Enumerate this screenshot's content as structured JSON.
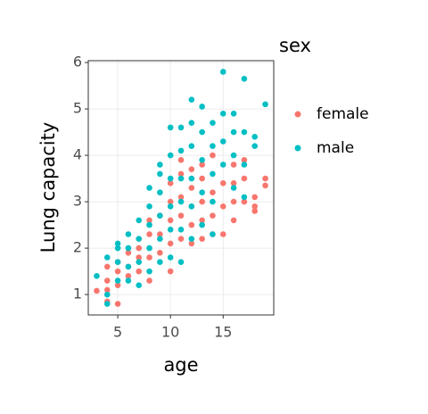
{
  "chart_data": {
    "type": "scatter",
    "x_label": "age",
    "y_label": "Lung capacity",
    "legend_title": "sex",
    "xlim": [
      2.2,
      19.8
    ],
    "ylim": [
      0.56,
      6.04
    ],
    "xticks": [
      5,
      10,
      15
    ],
    "yticks": [
      1,
      2,
      3,
      4,
      5,
      6
    ],
    "grid": true,
    "legend": "right",
    "series": [
      {
        "name": "female",
        "color": "#F8766D",
        "x": [
          3,
          4,
          4,
          4,
          4,
          5,
          5,
          5,
          5,
          6,
          6,
          6,
          7,
          7,
          7,
          7,
          8,
          8,
          8,
          8,
          9,
          9,
          9,
          10,
          10,
          10,
          10,
          10,
          11,
          11,
          11,
          11,
          11,
          12,
          12,
          12,
          12,
          13,
          13,
          13,
          13,
          14,
          14,
          14,
          15,
          15,
          15,
          16,
          16,
          16,
          17,
          17,
          18,
          18,
          18,
          19,
          19,
          12,
          13,
          14,
          16,
          17
        ],
        "values": [
          1.08,
          1.6,
          1.3,
          1.1,
          0.85,
          0.8,
          1.2,
          1.5,
          1.7,
          1.4,
          1.6,
          1.9,
          1.5,
          1.8,
          2.0,
          2.2,
          1.3,
          1.8,
          2.3,
          2.6,
          1.9,
          2.3,
          2.7,
          1.5,
          2.1,
          2.6,
          3.0,
          3.4,
          2.2,
          2.7,
          3.1,
          3.6,
          3.9,
          2.1,
          2.5,
          2.9,
          3.3,
          2.2,
          2.6,
          3.0,
          3.5,
          2.3,
          2.7,
          3.2,
          2.3,
          2.9,
          3.4,
          2.6,
          3.0,
          3.4,
          3.0,
          3.5,
          2.9,
          2.8,
          3.1,
          3.35,
          3.5,
          3.7,
          3.8,
          4.0,
          3.8,
          3.9
        ]
      },
      {
        "name": "male",
        "color": "#00BFC4",
        "x": [
          3,
          4,
          4,
          4,
          5,
          5,
          5,
          5,
          6,
          6,
          6,
          6,
          7,
          7,
          7,
          7,
          8,
          8,
          8,
          8,
          8,
          9,
          9,
          9,
          9,
          9,
          9,
          10,
          10,
          10,
          10,
          10,
          10,
          11,
          11,
          11,
          11,
          11,
          11,
          12,
          12,
          12,
          12,
          12,
          12,
          13,
          13,
          13,
          13,
          13,
          14,
          14,
          14,
          14,
          14,
          15,
          15,
          15,
          16,
          16,
          16,
          17,
          17,
          17,
          17,
          18,
          18,
          19,
          15,
          16
        ],
        "values": [
          1.4,
          0.8,
          1.0,
          1.8,
          1.3,
          1.7,
          2.0,
          2.1,
          1.3,
          1.6,
          2.0,
          2.3,
          1.2,
          1.7,
          2.2,
          2.6,
          1.5,
          2.0,
          2.5,
          2.9,
          3.3,
          1.7,
          2.2,
          2.7,
          3.2,
          3.6,
          3.8,
          1.8,
          2.4,
          2.9,
          3.5,
          4.0,
          4.6,
          1.7,
          2.4,
          3.0,
          3.5,
          4.1,
          4.6,
          2.2,
          2.9,
          3.5,
          4.2,
          4.7,
          5.2,
          2.5,
          3.2,
          3.9,
          4.5,
          5.05,
          2.3,
          3.0,
          3.6,
          4.2,
          4.7,
          3.8,
          4.3,
          5.8,
          3.3,
          4.0,
          4.9,
          3.1,
          3.8,
          4.5,
          5.65,
          4.2,
          4.4,
          5.1,
          4.9,
          4.5
        ]
      }
    ]
  }
}
